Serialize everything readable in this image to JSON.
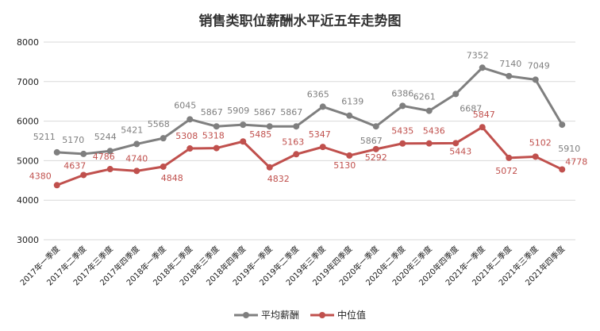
{
  "chart_data": {
    "type": "line",
    "title": "销售类职位薪酬水平近五年走势图",
    "xlabel": "",
    "ylabel": "",
    "ylim": [
      3000,
      8000
    ],
    "yticks": [
      3000,
      4000,
      5000,
      6000,
      7000,
      8000
    ],
    "grid": true,
    "legend_position": "bottom",
    "categories": [
      "2017年一季度",
      "2017年二季度",
      "2017年三季度",
      "2017年四季度",
      "2018年一季度",
      "2018年二季度",
      "2018年三季度",
      "2018年四季度",
      "2019年一季度",
      "2019年二季度",
      "2019年三季度",
      "2019年四季度",
      "2020年一季度",
      "2020年二季度",
      "2020年三季度",
      "2020年四季度",
      "2021年一季度",
      "2021年二季度",
      "2021年三季度",
      "2021年四季度"
    ],
    "series": [
      {
        "name": "平均薪酬",
        "color": "#7f7f7f",
        "values": [
          5211,
          5170,
          5244,
          5421,
          5568,
          6045,
          5867,
          5909,
          5867,
          5867,
          6365,
          6139,
          5867,
          6386,
          6261,
          6687,
          7352,
          7140,
          7049,
          5910
        ]
      },
      {
        "name": "中位值",
        "color": "#c0504d",
        "values": [
          4380,
          4637,
          4786,
          4740,
          4848,
          5308,
          5318,
          5485,
          4832,
          5163,
          5347,
          5130,
          5292,
          5435,
          5436,
          5443,
          5847,
          5072,
          5102,
          4778
        ]
      }
    ]
  }
}
